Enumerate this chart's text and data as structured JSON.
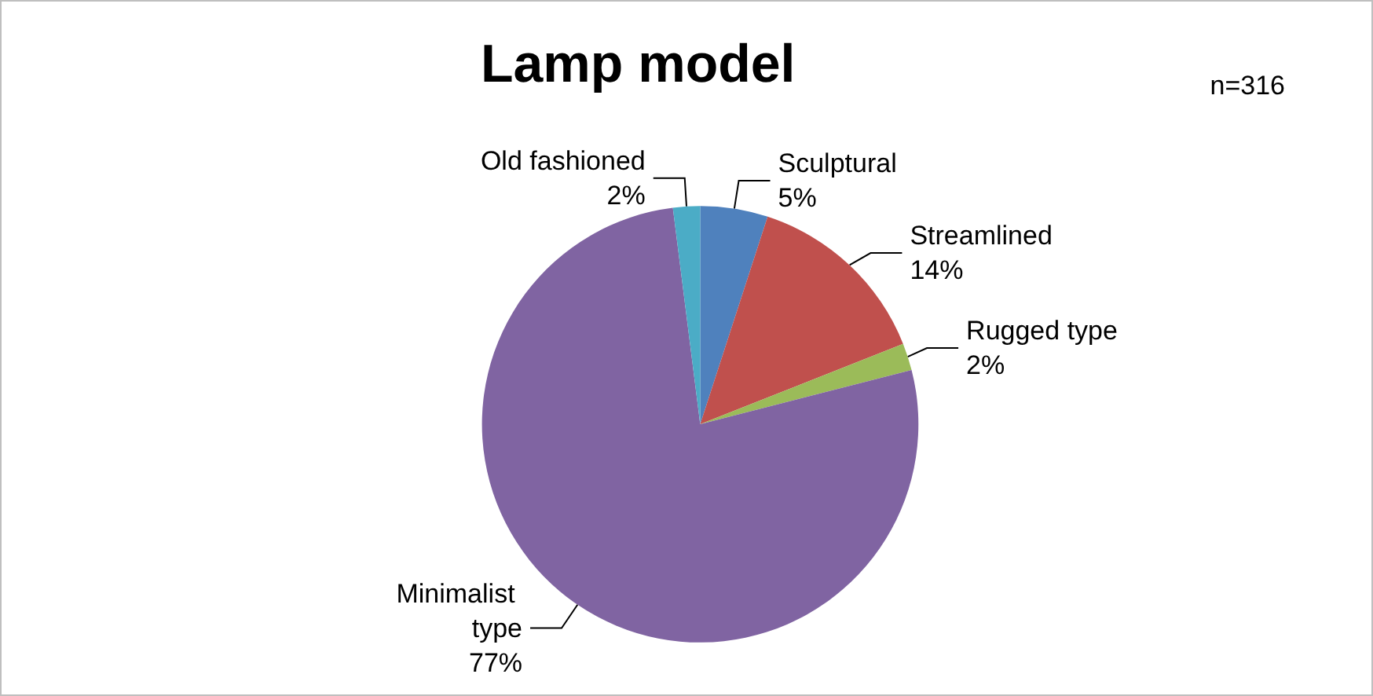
{
  "chart_data": {
    "type": "pie",
    "title": "Lamp model",
    "categories": [
      "Sculptural",
      "Streamlined",
      "Rugged type",
      "Minimalist type",
      "Old fashioned"
    ],
    "values": [
      5,
      14,
      2,
      77,
      2
    ],
    "colors": [
      "#4f81bd",
      "#c0504d",
      "#9bbb59",
      "#8064a2",
      "#4bacc6"
    ],
    "annotations": [
      "n=316"
    ],
    "value_labels": [
      "5%",
      "14%",
      "2%",
      "77%",
      "2%"
    ],
    "legend": false
  }
}
